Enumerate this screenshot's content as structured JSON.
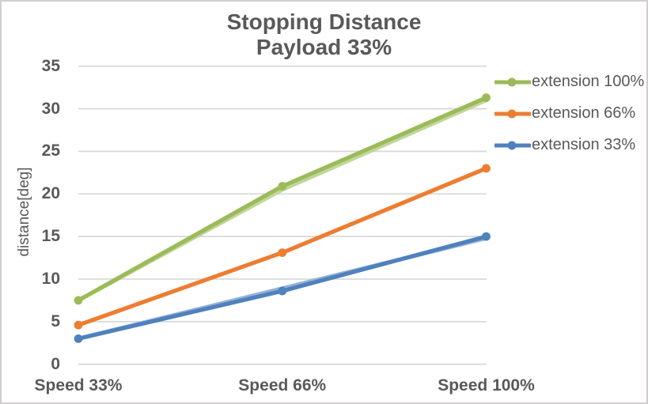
{
  "frame": {
    "background_color": "#FFFFFF",
    "border_color": "#D0CECE",
    "text_color": "#595959",
    "gridline_color": "#D9D9D9"
  },
  "chart_data": {
    "type": "line",
    "title": "Stopping Distance",
    "subtitle": "Payload 33%",
    "xlabel": "",
    "ylabel": "distance[deg]",
    "categories": [
      "Speed 33%",
      "Speed 66%",
      "Speed 100%"
    ],
    "y_ticks": [
      0,
      5,
      10,
      15,
      20,
      25,
      30,
      35
    ],
    "ylim": [
      0,
      35
    ],
    "grid": true,
    "legend_position": "right",
    "marker": "circle",
    "series": [
      {
        "name": "extension 100%",
        "values": [
          7.5,
          20.9,
          31.3
        ],
        "color": "#9BBB59"
      },
      {
        "name": "extension 66%",
        "values": [
          4.6,
          13.1,
          23.0
        ],
        "color": "#ED7D31"
      },
      {
        "name": "extension 33%",
        "values": [
          3.0,
          8.6,
          15.0
        ],
        "color": "#4F81BD"
      }
    ],
    "shadow_series": [
      {
        "name": "extension 100% duplicate trace",
        "values": [
          7.5,
          20.5,
          31.0
        ],
        "color": "#C3D69B"
      },
      {
        "name": "extension 33% duplicate trace",
        "values": [
          3.0,
          8.9,
          14.8
        ],
        "color": "#95B3D7"
      }
    ]
  }
}
